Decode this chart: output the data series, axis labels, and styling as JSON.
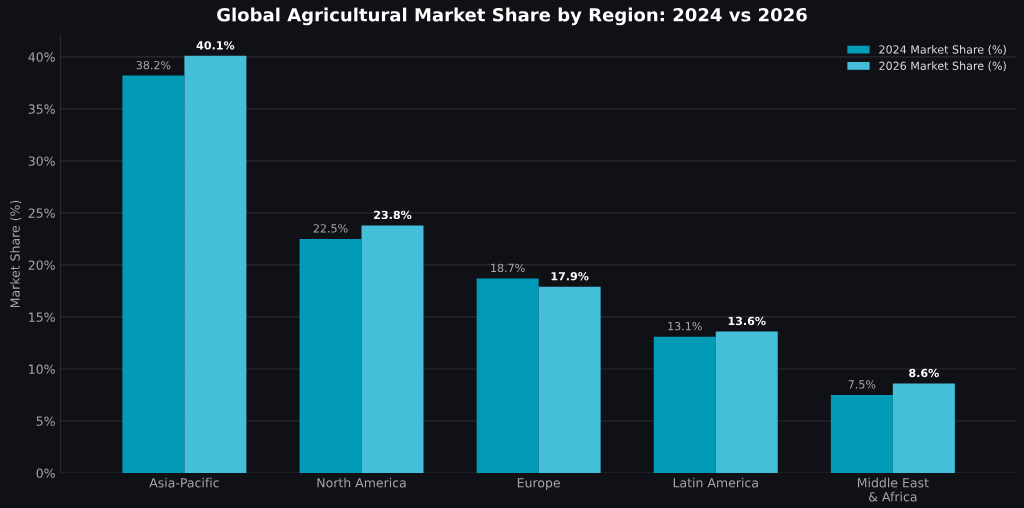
{
  "chart_data": {
    "type": "bar",
    "title": "Global Agricultural Market Share by Region: 2024 vs 2026",
    "ylabel": "Market Share (%)",
    "categories": [
      "Asia-Pacific",
      "North America",
      "Europe",
      "Latin America",
      "Middle East\n& Africa"
    ],
    "series": [
      {
        "name": "2024 Market Share (%)",
        "color": "#019bb8",
        "values": [
          38.2,
          22.5,
          18.7,
          13.1,
          7.5
        ],
        "value_labels": [
          "38.2%",
          "22.5%",
          "18.7%",
          "13.1%",
          "7.5%"
        ]
      },
      {
        "name": "2026 Market Share (%)",
        "color": "#45bfd9",
        "values": [
          40.1,
          23.8,
          17.9,
          13.6,
          8.6
        ],
        "value_labels": [
          "40.1%",
          "23.8%",
          "17.9%",
          "13.6%",
          "8.6%"
        ]
      }
    ],
    "ylim": [
      0,
      42.1
    ],
    "yticks": [
      {
        "value": 0,
        "label": "0%"
      },
      {
        "value": 5,
        "label": "5%"
      },
      {
        "value": 10,
        "label": "10%"
      },
      {
        "value": 15,
        "label": "15%"
      },
      {
        "value": 20,
        "label": "20%"
      },
      {
        "value": 25,
        "label": "25%"
      },
      {
        "value": 30,
        "label": "30%"
      },
      {
        "value": 35,
        "label": "35%"
      },
      {
        "value": 40,
        "label": "40%"
      }
    ],
    "grid": "y",
    "legend": "top right"
  }
}
